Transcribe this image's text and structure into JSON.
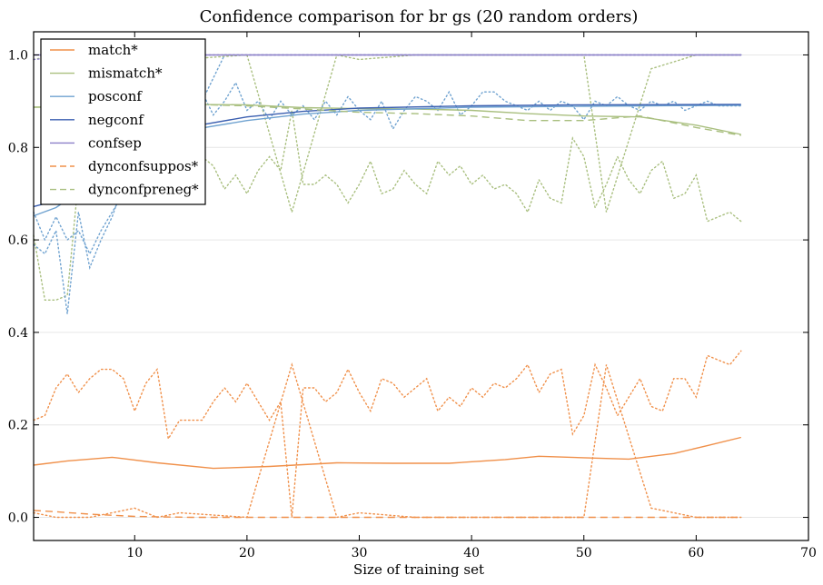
{
  "chart_data": {
    "type": "line",
    "title": "Confidence comparison for br gs (20 random orders)",
    "xlabel": "Size of training set",
    "ylabel": "",
    "xlim": [
      1,
      70
    ],
    "ylim": [
      -0.05,
      1.05
    ],
    "xticks": [
      10,
      20,
      30,
      40,
      50,
      60,
      70
    ],
    "yticks": [
      0.0,
      0.2,
      0.4,
      0.6,
      0.8,
      1.0
    ],
    "ytick_labels": [
      "0.0",
      "0.2",
      "0.4",
      "0.6",
      "0.8",
      "1.0"
    ],
    "grid": "horizontal",
    "legend_position": "top-left",
    "colors": {
      "orange": "#f0904a",
      "green": "#a9bf7f",
      "lightblue": "#6fa2d0",
      "darkblue": "#3b5fb0",
      "purple": "#8c7fc8"
    },
    "series": [
      {
        "name": "match*",
        "style": "solid",
        "color": "#f0904a",
        "x": [
          1,
          4,
          8,
          12,
          17,
          22,
          28,
          33,
          38,
          43,
          46,
          50,
          54,
          58,
          61,
          64
        ],
        "y": [
          0.113,
          0.122,
          0.13,
          0.118,
          0.106,
          0.11,
          0.118,
          0.117,
          0.117,
          0.125,
          0.132,
          0.129,
          0.126,
          0.138,
          0.155,
          0.173
        ]
      },
      {
        "name": "mismatch*",
        "style": "solid",
        "color": "#a9bf7f",
        "x": [
          1,
          5,
          10,
          15,
          20,
          25,
          30,
          35,
          40,
          45,
          50,
          55,
          60,
          64
        ],
        "y": [
          0.887,
          0.888,
          0.89,
          0.893,
          0.892,
          0.886,
          0.884,
          0.883,
          0.88,
          0.873,
          0.868,
          0.866,
          0.848,
          0.828
        ]
      },
      {
        "name": "posconf",
        "style": "solid",
        "color": "#6fa2d0",
        "x": [
          1,
          3,
          6,
          10,
          15,
          20,
          25,
          30,
          40,
          50,
          64
        ],
        "y": [
          0.652,
          0.67,
          0.72,
          0.79,
          0.838,
          0.858,
          0.872,
          0.88,
          0.887,
          0.889,
          0.891
        ]
      },
      {
        "name": "negconf",
        "style": "solid",
        "color": "#3b5fb0",
        "x": [
          1,
          3,
          6,
          10,
          15,
          20,
          25,
          30,
          40,
          50,
          64
        ],
        "y": [
          0.672,
          0.685,
          0.735,
          0.8,
          0.845,
          0.866,
          0.878,
          0.885,
          0.89,
          0.892,
          0.893
        ]
      },
      {
        "name": "confsep",
        "style": "solid",
        "color": "#8c7fc8",
        "x": [
          1,
          64
        ],
        "y": [
          1.0,
          1.0
        ]
      },
      {
        "name": "dynconfsuppos*",
        "style": "dashed",
        "color": "#f0904a",
        "x": [
          1,
          3,
          6,
          10,
          15,
          20,
          64
        ],
        "y": [
          0.015,
          0.012,
          0.007,
          0.002,
          0.0,
          0.0,
          0.0
        ]
      },
      {
        "name": "dynconfpreneg*",
        "style": "dashed",
        "color": "#a9bf7f",
        "x": [
          1,
          5,
          10,
          15,
          20,
          25,
          30,
          35,
          40,
          45,
          50,
          55,
          60,
          64
        ],
        "y": [
          0.887,
          0.888,
          0.89,
          0.893,
          0.89,
          0.883,
          0.876,
          0.873,
          0.868,
          0.858,
          0.858,
          0.868,
          0.843,
          0.826
        ]
      }
    ],
    "dotted_series": [
      {
        "color": "#f0904a",
        "x": [
          1,
          2,
          3,
          4,
          5,
          6,
          7,
          8,
          9,
          10,
          11,
          12,
          13,
          14,
          15,
          16,
          17,
          18,
          19,
          20,
          21,
          22,
          23,
          24,
          25,
          26,
          27,
          28,
          29,
          30,
          31,
          32,
          33,
          34,
          35,
          36,
          37,
          38,
          39,
          40,
          41,
          42,
          43,
          44,
          45,
          46,
          47,
          48,
          49,
          50,
          51,
          52,
          53,
          54,
          55,
          56,
          57,
          58,
          59,
          60,
          61,
          62,
          63,
          64
        ],
        "y": [
          0.21,
          0.22,
          0.28,
          0.31,
          0.27,
          0.3,
          0.32,
          0.32,
          0.3,
          0.23,
          0.29,
          0.32,
          0.17,
          0.21,
          0.21,
          0.21,
          0.25,
          0.28,
          0.25,
          0.29,
          0.25,
          0.21,
          0.25,
          0.0,
          0.28,
          0.28,
          0.25,
          0.27,
          0.32,
          0.27,
          0.23,
          0.3,
          0.29,
          0.26,
          0.28,
          0.3,
          0.23,
          0.26,
          0.24,
          0.28,
          0.26,
          0.29,
          0.28,
          0.3,
          0.33,
          0.27,
          0.31,
          0.32,
          0.18,
          0.22,
          0.33,
          0.28,
          0.22,
          0.26,
          0.3,
          0.24,
          0.23,
          0.3,
          0.3,
          0.26,
          0.35,
          0.34,
          0.33,
          0.36
        ]
      },
      {
        "color": "#f0904a",
        "x": [
          1,
          3,
          6,
          10,
          12,
          14,
          20,
          24,
          28,
          30,
          35,
          40,
          45,
          50,
          52,
          56,
          60,
          64
        ],
        "y": [
          0.01,
          0.0,
          0.0,
          0.02,
          0.0,
          0.01,
          0.0,
          0.33,
          0.0,
          0.01,
          0.0,
          0.0,
          0.0,
          0.0,
          0.33,
          0.02,
          0.0,
          0.0
        ]
      },
      {
        "color": "#a9bf7f",
        "x": [
          1,
          2,
          3,
          4,
          5,
          6,
          7,
          8,
          9,
          10,
          11,
          12,
          13,
          14,
          15,
          16,
          17,
          18,
          19,
          20,
          21,
          22,
          23,
          24,
          25,
          26,
          27,
          28,
          29,
          30,
          31,
          32,
          33,
          34,
          35,
          36,
          37,
          38,
          39,
          40,
          41,
          42,
          43,
          44,
          45,
          46,
          47,
          48,
          49,
          50,
          51,
          52,
          53,
          54,
          55,
          56,
          57,
          58,
          59,
          60,
          61,
          62,
          63,
          64
        ],
        "y": [
          0.61,
          0.47,
          0.47,
          0.48,
          0.73,
          0.7,
          0.68,
          0.69,
          0.7,
          0.76,
          0.72,
          0.68,
          0.83,
          0.78,
          0.78,
          0.78,
          0.76,
          0.71,
          0.74,
          0.7,
          0.75,
          0.78,
          0.75,
          0.88,
          0.72,
          0.72,
          0.74,
          0.72,
          0.68,
          0.72,
          0.77,
          0.7,
          0.71,
          0.75,
          0.72,
          0.7,
          0.77,
          0.74,
          0.76,
          0.72,
          0.74,
          0.71,
          0.72,
          0.7,
          0.66,
          0.73,
          0.69,
          0.68,
          0.82,
          0.78,
          0.67,
          0.72,
          0.78,
          0.73,
          0.7,
          0.75,
          0.77,
          0.69,
          0.7,
          0.74,
          0.64,
          0.65,
          0.66,
          0.64
        ]
      },
      {
        "color": "#a9bf7f",
        "x": [
          1,
          3,
          6,
          10,
          12,
          14,
          20,
          24,
          28,
          30,
          35,
          40,
          45,
          50,
          52,
          56,
          60,
          64
        ],
        "y": [
          0.99,
          1.0,
          1.0,
          0.97,
          1.0,
          0.99,
          1.0,
          0.66,
          1.0,
          0.99,
          1.0,
          1.0,
          1.0,
          1.0,
          0.66,
          0.97,
          1.0,
          1.0
        ]
      },
      {
        "color": "#6fa2d0",
        "x": [
          1,
          2,
          3,
          4,
          5,
          6,
          7,
          8,
          9,
          10,
          11,
          12,
          13,
          14,
          15,
          16,
          17,
          18,
          19,
          20,
          21,
          22,
          23,
          24,
          25,
          26,
          27,
          28,
          29,
          30,
          31,
          32,
          33,
          34,
          35,
          36,
          37,
          38,
          39,
          40,
          41,
          42,
          43,
          44,
          45,
          46,
          47,
          48,
          49,
          50,
          51,
          52,
          53,
          54,
          55,
          56,
          57,
          58,
          59,
          60,
          61,
          62,
          63,
          64
        ],
        "y": [
          0.59,
          0.57,
          0.62,
          0.44,
          0.66,
          0.54,
          0.6,
          0.65,
          0.72,
          0.78,
          0.75,
          0.82,
          0.76,
          0.85,
          0.89,
          0.92,
          0.87,
          0.9,
          0.94,
          0.88,
          0.9,
          0.86,
          0.9,
          0.87,
          0.89,
          0.86,
          0.9,
          0.87,
          0.91,
          0.88,
          0.86,
          0.9,
          0.84,
          0.88,
          0.91,
          0.9,
          0.88,
          0.92,
          0.87,
          0.89,
          0.92,
          0.92,
          0.9,
          0.89,
          0.88,
          0.9,
          0.88,
          0.9,
          0.89,
          0.86,
          0.9,
          0.89,
          0.91,
          0.89,
          0.88,
          0.9,
          0.89,
          0.9,
          0.88,
          0.89,
          0.9,
          0.89,
          0.89,
          0.89
        ]
      },
      {
        "color": "#6fa2d0",
        "x": [
          1,
          2,
          3,
          4,
          5,
          6,
          7,
          8,
          9,
          10,
          12,
          14,
          16,
          18,
          20,
          30,
          40,
          50,
          64
        ],
        "y": [
          0.66,
          0.6,
          0.65,
          0.6,
          0.62,
          0.57,
          0.62,
          0.66,
          0.7,
          0.73,
          0.8,
          0.85,
          0.9,
          1.0,
          1.0,
          1.0,
          1.0,
          1.0,
          1.0
        ]
      },
      {
        "color": "#8c7fc8",
        "x": [
          1,
          5,
          10,
          15,
          20,
          30,
          40,
          50,
          64
        ],
        "y": [
          0.99,
          1.0,
          1.0,
          1.0,
          1.0,
          1.0,
          1.0,
          1.0,
          1.0
        ]
      }
    ]
  }
}
